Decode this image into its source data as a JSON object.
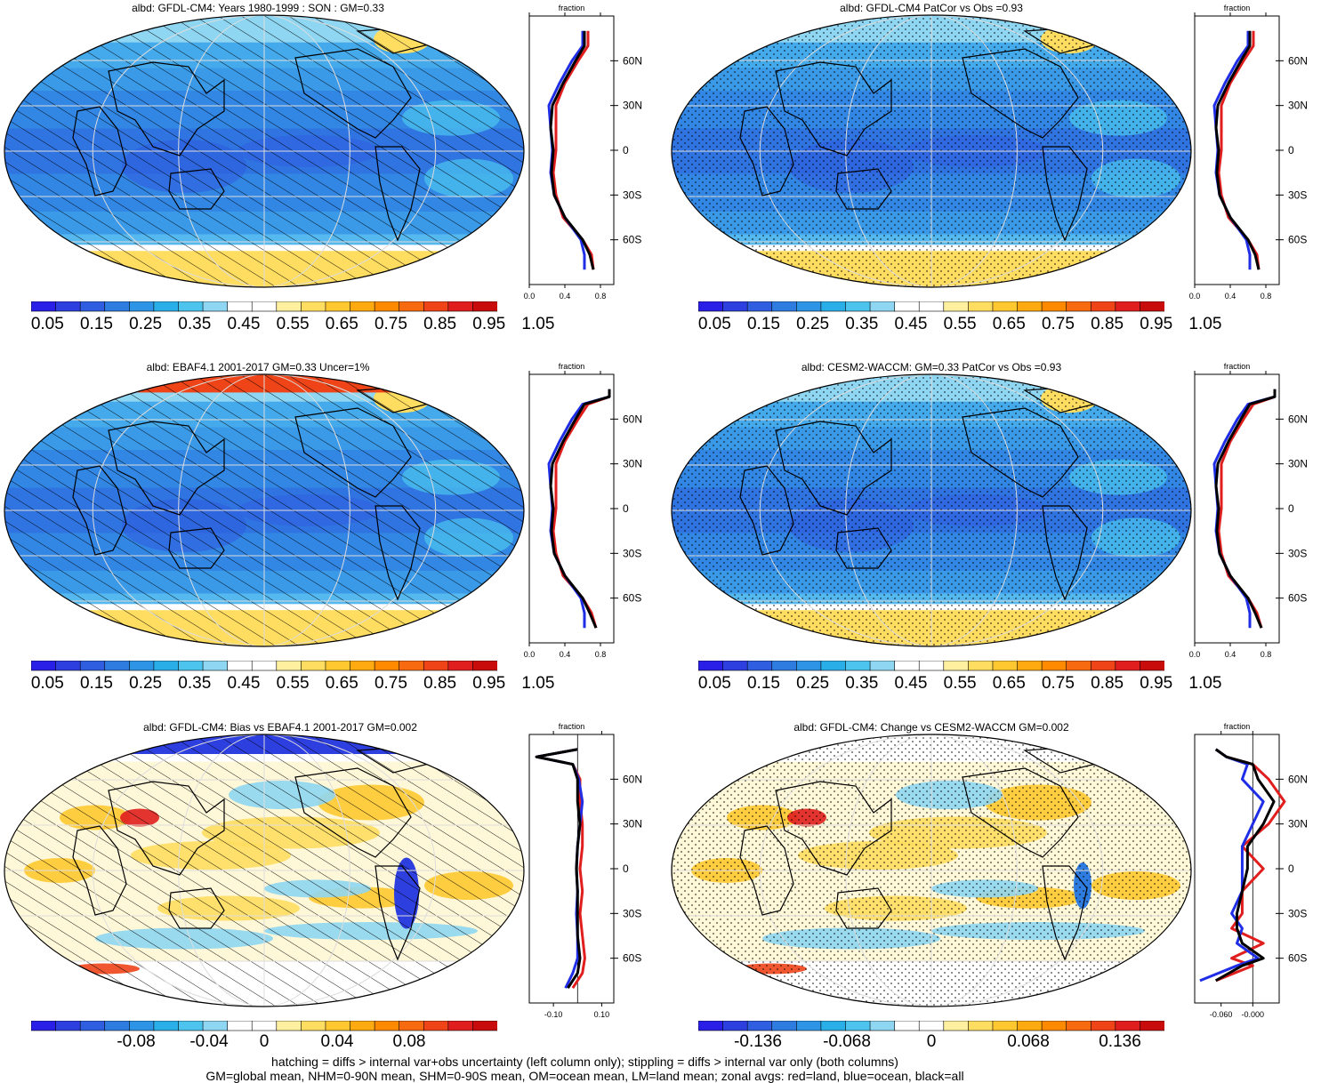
{
  "panels": [
    {
      "title": "albd: GFDL-CM4: Years 1980-1999 : SON : GM=0.33",
      "kind": "abs",
      "overlay": "hatch"
    },
    {
      "title": "albd: GFDL-CM4 PatCor vs Obs =0.93",
      "kind": "abs",
      "overlay": "stipple"
    },
    {
      "title": "albd: EBAF4.1 2001-2017 GM=0.33 Uncer=1%",
      "kind": "obs",
      "overlay": "hatch"
    },
    {
      "title": "albd: CESM2-WACCM: GM=0.33 PatCor vs Obs =0.93",
      "kind": "abs",
      "overlay": "stipple"
    },
    {
      "title": "albd: GFDL-CM4: Bias vs EBAF4.1 2001-2017  GM=0.002",
      "kind": "diff",
      "overlay": "hatch"
    },
    {
      "title": "albd: GFDL-CM4: Change vs CESM2-WACCM GM=0.002",
      "kind": "diff2",
      "overlay": "stipple"
    }
  ],
  "colorbars": {
    "abs_labels": [
      "0.05",
      "0.15",
      "0.25",
      "0.35",
      "0.45",
      "0.55",
      "0.65",
      "0.75",
      "0.85",
      "0.95",
      "1.05"
    ],
    "diff_labels": [
      "-0.08",
      "-0.04",
      "0",
      "0.04",
      "0.08"
    ],
    "diff2_labels": [
      "-0.136",
      "-0.068",
      "0",
      "0.068",
      "0.136"
    ],
    "colors": [
      "#2a1fe6",
      "#2e3fe0",
      "#2f5ee0",
      "#2f7ce0",
      "#2e95e6",
      "#2aaee8",
      "#4cc4ee",
      "#8fd6f2",
      "#ffffff",
      "#ffffff",
      "#fff0a0",
      "#ffdd60",
      "#ffc830",
      "#ffaa10",
      "#ff8a00",
      "#f86a10",
      "#ee4418",
      "#e01e1e",
      "#c80b0b"
    ]
  },
  "zonal": {
    "header": "fraction",
    "lat_labels": [
      "60N",
      "30N",
      "0",
      "30S",
      "60S"
    ],
    "abs_ticks": [
      "0.0",
      "0.4",
      "0.8"
    ],
    "diff_ticks": [
      "-0.10",
      "0.10"
    ],
    "diff2_ticks": [
      "-0.060",
      "-0.000"
    ]
  },
  "footer": {
    "line1": "hatching = diffs > internal var+obs uncertainty (left column only); stippling = diffs > internal var only (both columns)",
    "line2": "GM=global mean, NHM=0-90N mean, SHM=0-90S mean, OM=ocean mean, LM=land mean; zonal avgs: red=land, blue=ocean, black=all"
  },
  "chart_data": [
    {
      "type": "heatmap",
      "title": "albd: GFDL-CM4: Years 1980-1999 : SON : GM=0.33",
      "colorbar": [
        0.05,
        0.15,
        0.25,
        0.35,
        0.45,
        0.55,
        0.65,
        0.75,
        0.85,
        0.95,
        1.05
      ],
      "zonal_mean": {
        "xlabel": "fraction",
        "xlim": [
          0,
          1.0
        ],
        "lat": [
          -80,
          -70,
          -60,
          -45,
          -30,
          -15,
          0,
          15,
          30,
          45,
          60,
          70,
          80
        ],
        "all": [
          0.72,
          0.68,
          0.6,
          0.4,
          0.28,
          0.25,
          0.27,
          0.24,
          0.26,
          0.38,
          0.52,
          0.62,
          0.62
        ],
        "land": [
          0.72,
          0.7,
          0.6,
          0.38,
          0.3,
          0.27,
          0.3,
          0.3,
          0.3,
          0.4,
          0.55,
          0.66,
          0.66
        ],
        "ocean": [
          0.62,
          0.62,
          0.58,
          0.4,
          0.28,
          0.24,
          0.26,
          0.24,
          0.22,
          0.34,
          0.48,
          0.6,
          0.6
        ]
      }
    },
    {
      "type": "heatmap",
      "title": "albd: GFDL-CM4 PatCor vs Obs =0.93",
      "colorbar": [
        0.05,
        0.15,
        0.25,
        0.35,
        0.45,
        0.55,
        0.65,
        0.75,
        0.85,
        0.95,
        1.05
      ]
    },
    {
      "type": "heatmap",
      "title": "albd: EBAF4.1 2001-2017 GM=0.33 Uncer=1%",
      "colorbar": [
        0.05,
        0.15,
        0.25,
        0.35,
        0.45,
        0.55,
        0.65,
        0.75,
        0.85,
        0.95,
        1.05
      ],
      "zonal_mean": {
        "xlabel": "fraction",
        "xlim": [
          0,
          1.0
        ],
        "lat": [
          -80,
          -70,
          -60,
          -45,
          -30,
          -15,
          0,
          15,
          30,
          45,
          60,
          70,
          75,
          80
        ],
        "all": [
          0.75,
          0.68,
          0.6,
          0.4,
          0.28,
          0.25,
          0.27,
          0.24,
          0.26,
          0.38,
          0.52,
          0.62,
          0.9,
          0.9
        ],
        "land": [
          0.75,
          0.7,
          0.6,
          0.38,
          0.3,
          0.27,
          0.3,
          0.3,
          0.3,
          0.4,
          0.55,
          0.66,
          0.9,
          0.9
        ],
        "ocean": [
          0.62,
          0.62,
          0.58,
          0.4,
          0.28,
          0.24,
          0.26,
          0.24,
          0.22,
          0.34,
          0.48,
          0.6,
          0.9,
          0.9
        ]
      }
    },
    {
      "type": "heatmap",
      "title": "albd: CESM2-WACCM: GM=0.33 PatCor vs Obs =0.93",
      "colorbar": [
        0.05,
        0.15,
        0.25,
        0.35,
        0.45,
        0.55,
        0.65,
        0.75,
        0.85,
        0.95,
        1.05
      ]
    },
    {
      "type": "heatmap",
      "title": "albd: GFDL-CM4: Bias vs EBAF4.1 2001-2017  GM=0.002",
      "colorbar": [
        -0.08,
        -0.04,
        0,
        0.04,
        0.08
      ],
      "zonal_mean": {
        "xlabel": "fraction",
        "xticks": [
          -0.1,
          0.1
        ],
        "lat": [
          -80,
          -70,
          -60,
          -45,
          -30,
          -15,
          0,
          15,
          30,
          45,
          60,
          70,
          75,
          80
        ],
        "all": [
          -0.04,
          0.0,
          0.01,
          0.0,
          0.0,
          0.0,
          -0.005,
          0.0,
          0.01,
          0.0,
          0.0,
          -0.02,
          -0.17,
          0.0
        ],
        "land": [
          -0.02,
          0.02,
          0.03,
          0.02,
          0.01,
          0.02,
          0.01,
          0.02,
          0.02,
          0.01,
          0.01,
          -0.02,
          -0.17,
          0.0
        ],
        "ocean": [
          -0.05,
          -0.02,
          0.0,
          0.0,
          -0.005,
          0.0,
          -0.005,
          0.0,
          0.01,
          0.02,
          0.005,
          -0.02,
          -0.17,
          0.0
        ]
      }
    },
    {
      "type": "heatmap",
      "title": "albd: GFDL-CM4: Change vs CESM2-WACCM GM=0.002",
      "colorbar": [
        -0.136,
        -0.068,
        0,
        0.068,
        0.136
      ],
      "zonal_mean": {
        "xlabel": "fraction",
        "xticks": [
          -0.06,
          -0.0
        ],
        "lat": [
          -75,
          -65,
          -60,
          -50,
          -40,
          -30,
          -15,
          0,
          15,
          30,
          45,
          60,
          70,
          75,
          80
        ],
        "all": [
          -0.07,
          -0.02,
          0.02,
          -0.02,
          -0.03,
          -0.03,
          -0.02,
          -0.01,
          -0.01,
          0.02,
          0.04,
          0.01,
          0.0,
          -0.05,
          -0.07
        ],
        "land": [
          -0.07,
          0.0,
          -0.04,
          0.02,
          -0.04,
          -0.02,
          -0.02,
          0.02,
          -0.02,
          0.03,
          0.06,
          0.03,
          0.0,
          -0.05,
          -0.07
        ],
        "ocean": [
          -0.1,
          -0.03,
          0.01,
          -0.03,
          -0.02,
          -0.04,
          -0.02,
          -0.02,
          -0.02,
          0.0,
          0.02,
          -0.02,
          -0.01,
          -0.05,
          -0.07
        ]
      }
    }
  ]
}
